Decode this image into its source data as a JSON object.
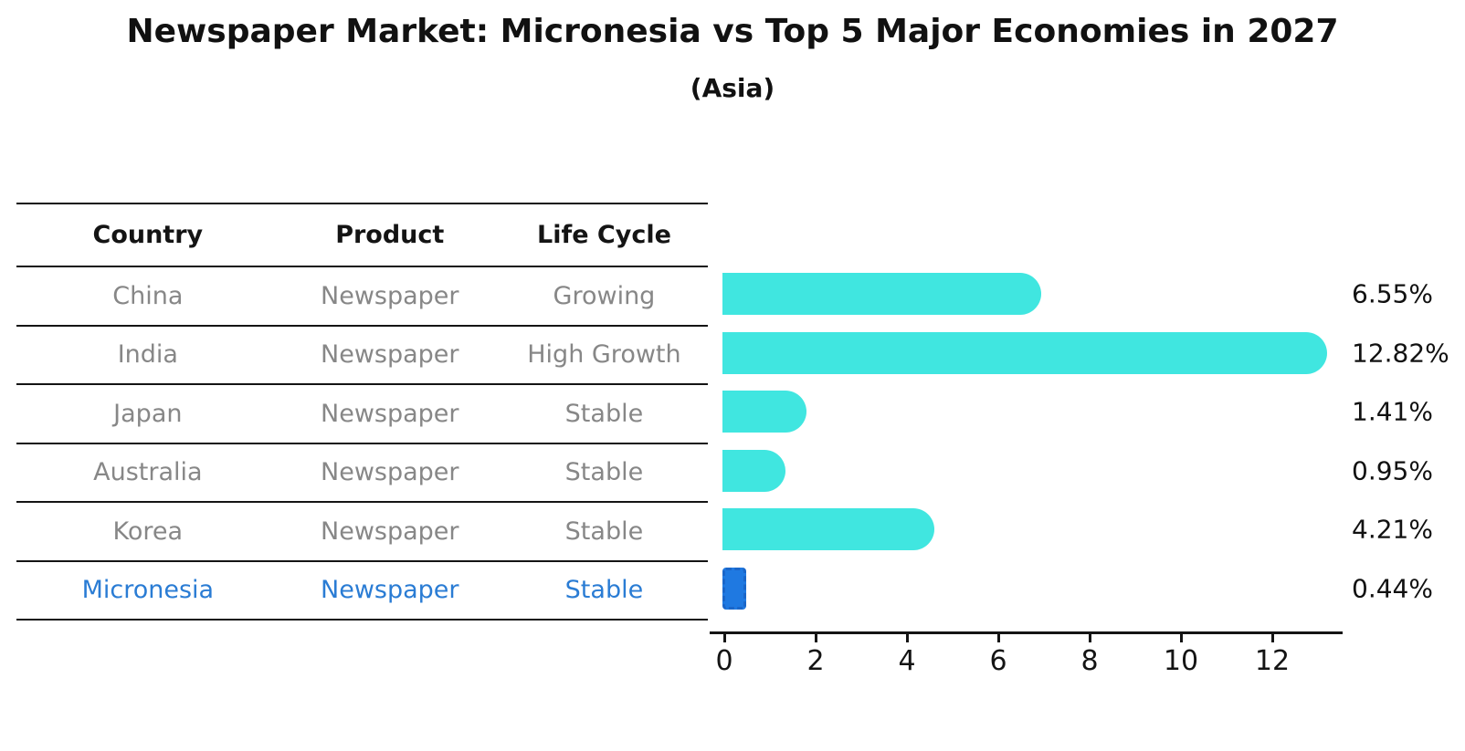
{
  "title": "Newspaper Market: Micronesia vs Top 5 Major Economies in 2027",
  "subtitle": "(Asia)",
  "table": {
    "headers": [
      "Country",
      "Product",
      "Life Cycle"
    ],
    "rows": [
      {
        "country": "China",
        "product": "Newspaper",
        "life_cycle": "Growing",
        "highlighted": false
      },
      {
        "country": "India",
        "product": "Newspaper",
        "life_cycle": "High Growth",
        "highlighted": false
      },
      {
        "country": "Japan",
        "product": "Newspaper",
        "life_cycle": "Stable",
        "highlighted": false
      },
      {
        "country": "Australia",
        "product": "Newspaper",
        "life_cycle": "Stable",
        "highlighted": false
      },
      {
        "country": "Korea",
        "product": "Newspaper",
        "life_cycle": "Stable",
        "highlighted": false
      },
      {
        "country": "Micronesia",
        "product": "Newspaper",
        "life_cycle": "Stable",
        "highlighted": true
      }
    ]
  },
  "chart_data": {
    "type": "bar",
    "orientation": "horizontal",
    "title": "Newspaper Market: Micronesia vs Top 5 Major Economies in 2027",
    "subtitle": "(Asia)",
    "categories": [
      "China",
      "India",
      "Japan",
      "Australia",
      "Korea",
      "Micronesia"
    ],
    "values": [
      6.55,
      12.82,
      1.41,
      0.95,
      4.21,
      0.44
    ],
    "value_labels": [
      "6.55%",
      "12.82%",
      "1.41%",
      "0.95%",
      "4.21%",
      "0.44%"
    ],
    "xlim": [
      0,
      13.5
    ],
    "xticks": [
      "0",
      "2",
      "4",
      "6",
      "8",
      "10",
      "12"
    ],
    "highlight_index": 5,
    "grid": false,
    "legend": null
  },
  "colors": {
    "bar": "#40E6E0",
    "highlight_bar": "#1F79E1",
    "highlight_border": "#1A66C9",
    "highlight_text": "#2A7CD4",
    "table_text": "#878787",
    "header_text": "#141414",
    "axis": "#141414"
  }
}
